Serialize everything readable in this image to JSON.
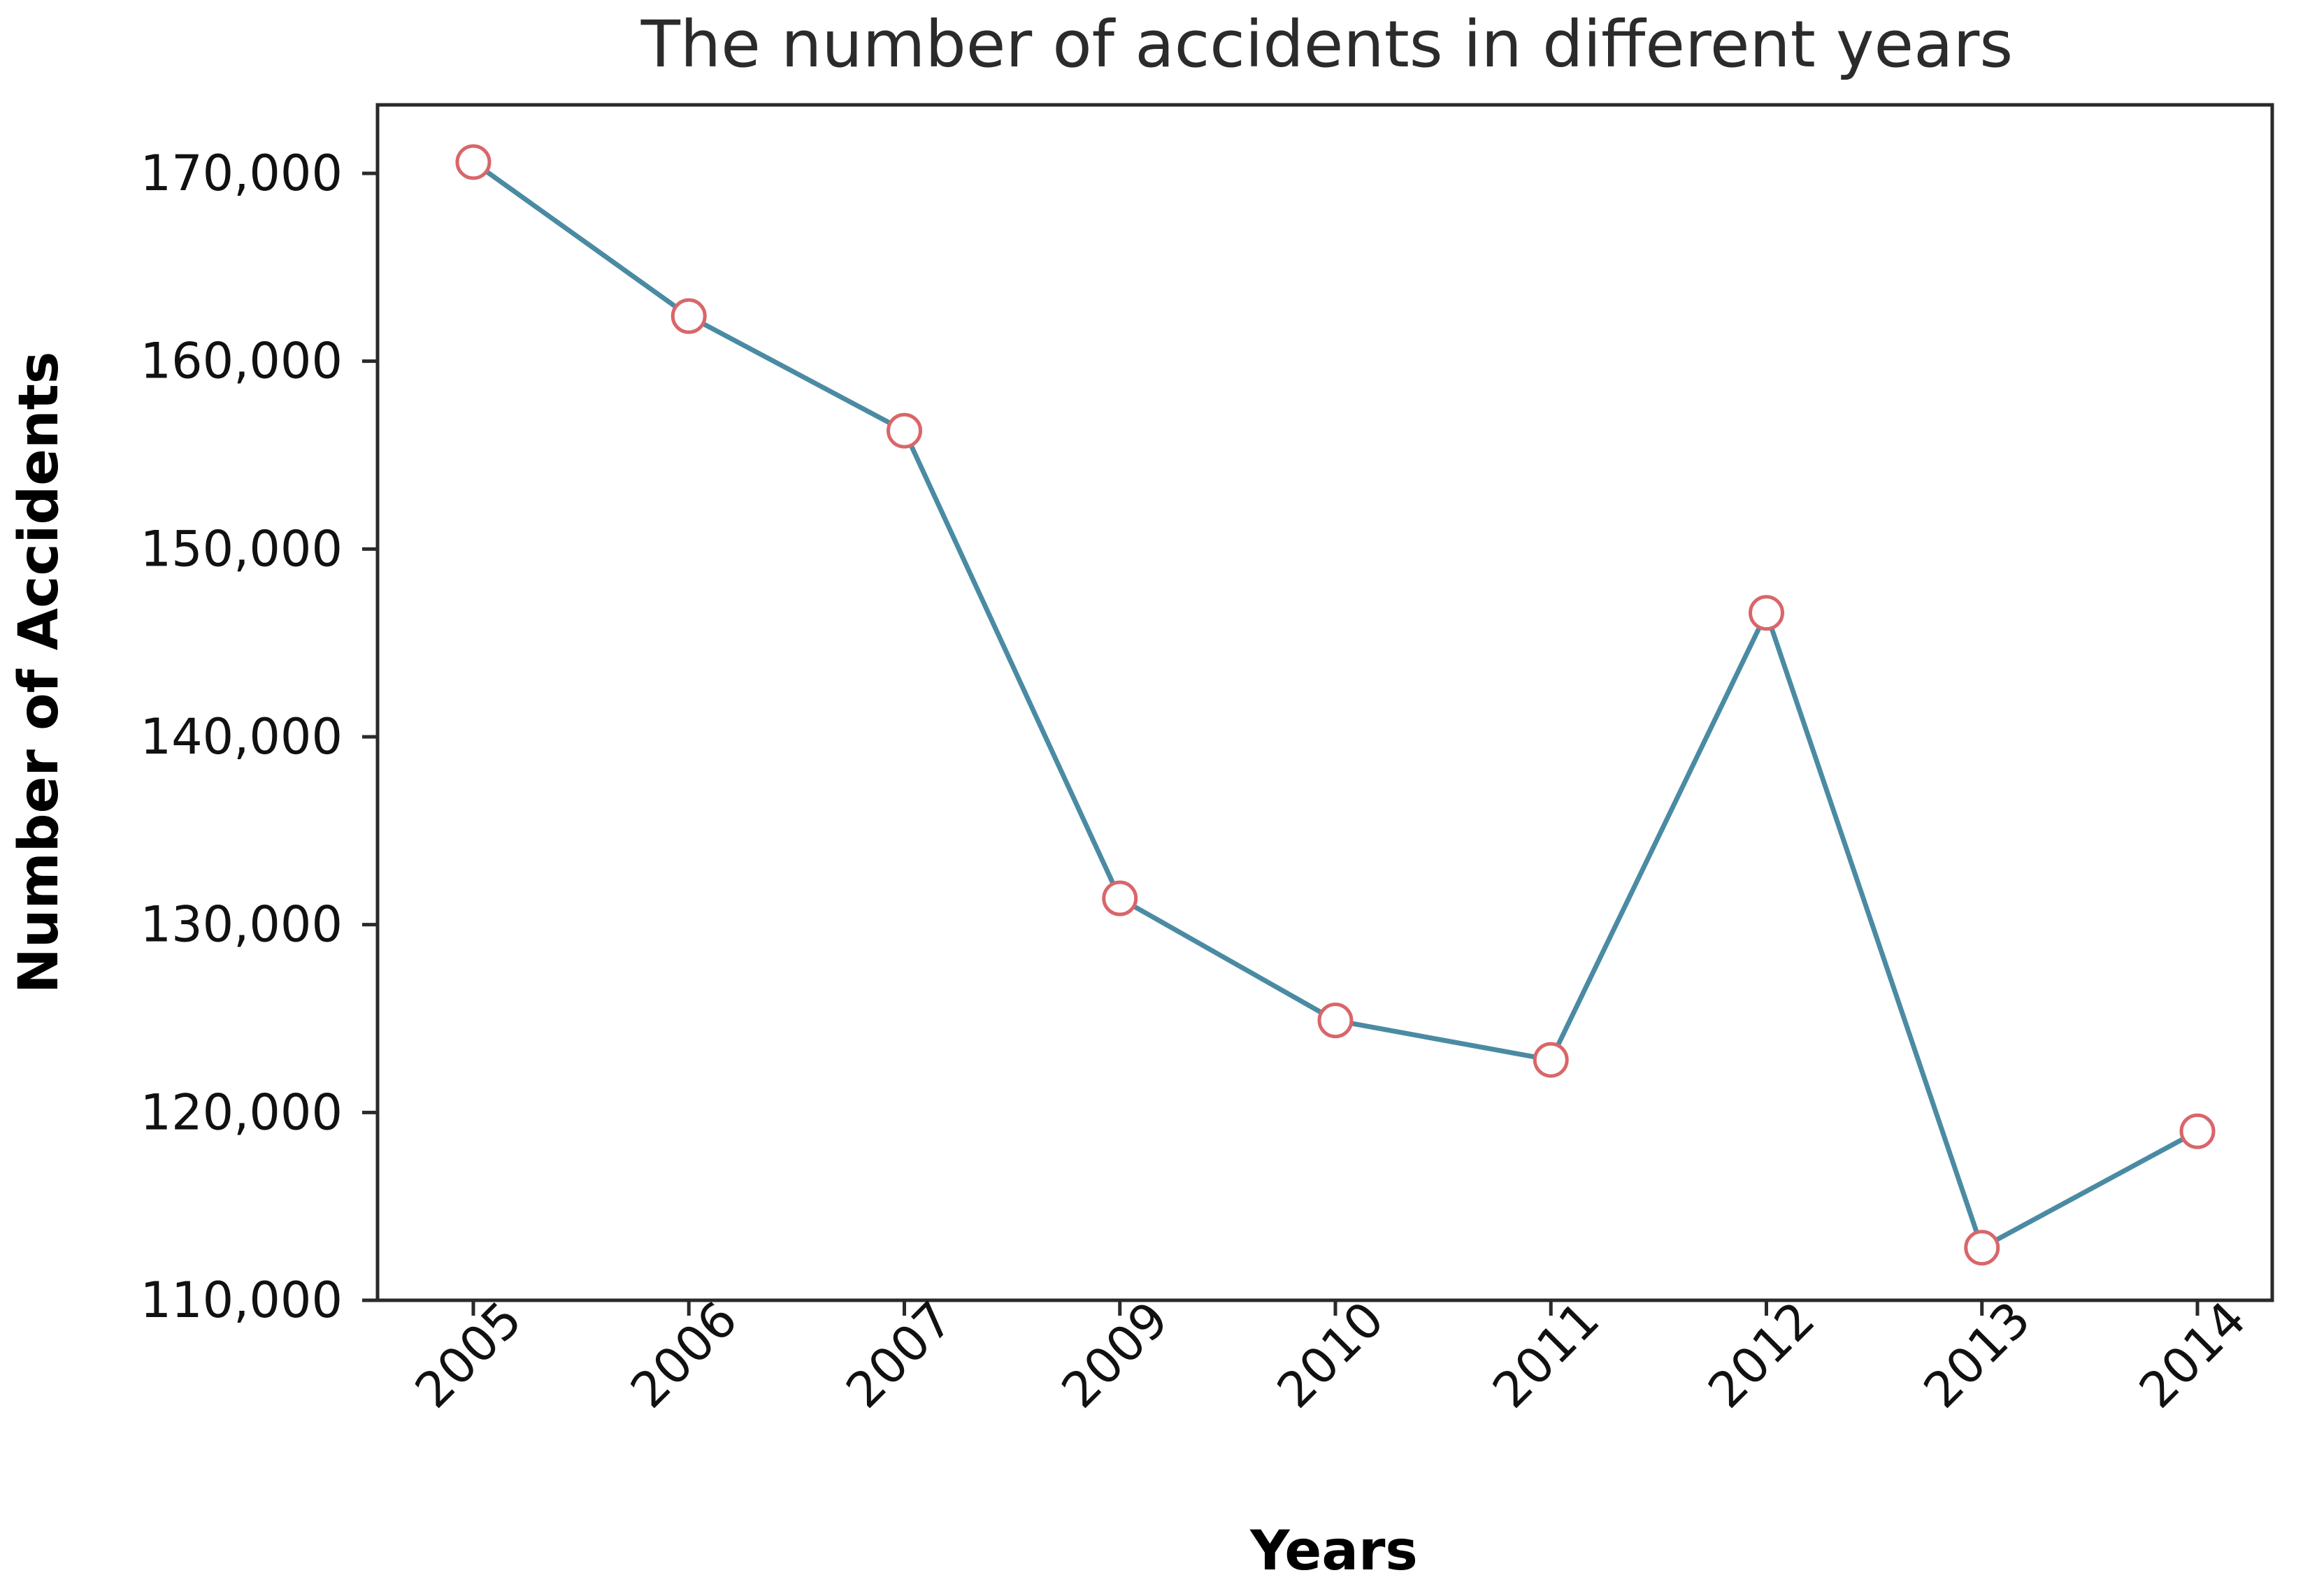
{
  "chart_data": {
    "type": "line",
    "title": "The number of accidents in different years",
    "xlabel": "Years",
    "ylabel": "Number of Accidents",
    "categories": [
      "2005",
      "2006",
      "2007",
      "2009",
      "2010",
      "2011",
      "2012",
      "2013",
      "2014"
    ],
    "series": [
      {
        "values": [
          170600,
          162400,
          156300,
          131400,
          124900,
          122800,
          146600,
          112800,
          119000
        ]
      }
    ],
    "ylim": [
      110000,
      170000
    ],
    "yticks": [
      110000,
      120000,
      130000,
      140000,
      150000,
      160000,
      170000
    ],
    "ytick_labels": [
      "110,000",
      "120,000",
      "130,000",
      "140,000",
      "150,000",
      "160,000",
      "170,000"
    ],
    "grid": false,
    "legend": "none",
    "colors": {
      "line": "#4a8ba3",
      "marker_edge": "#d9666a",
      "marker_face": "#ffffff",
      "axis": "#2a2a2a"
    }
  }
}
